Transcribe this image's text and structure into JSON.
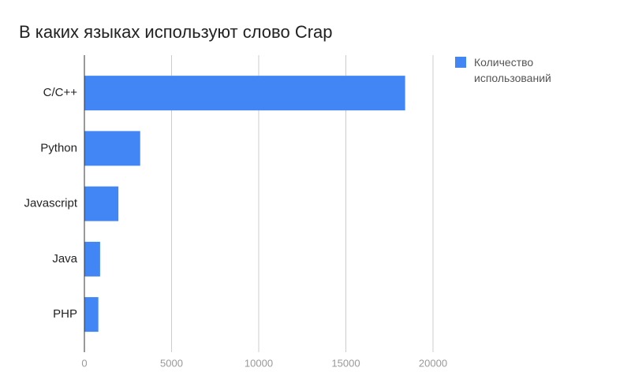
{
  "chart_data": {
    "type": "bar",
    "orientation": "horizontal",
    "title": "В каких языках используют слово Crap",
    "categories": [
      "C/C++",
      "Python",
      "Javascript",
      "Java",
      "PHP"
    ],
    "series": [
      {
        "name": "Количество использований",
        "color": "#4285f4",
        "values": [
          18400,
          3200,
          1950,
          900,
          800
        ]
      }
    ],
    "xlim": [
      0,
      20000
    ],
    "xticks": [
      0,
      5000,
      10000,
      15000,
      20000
    ],
    "grid": true,
    "legend": "right"
  }
}
